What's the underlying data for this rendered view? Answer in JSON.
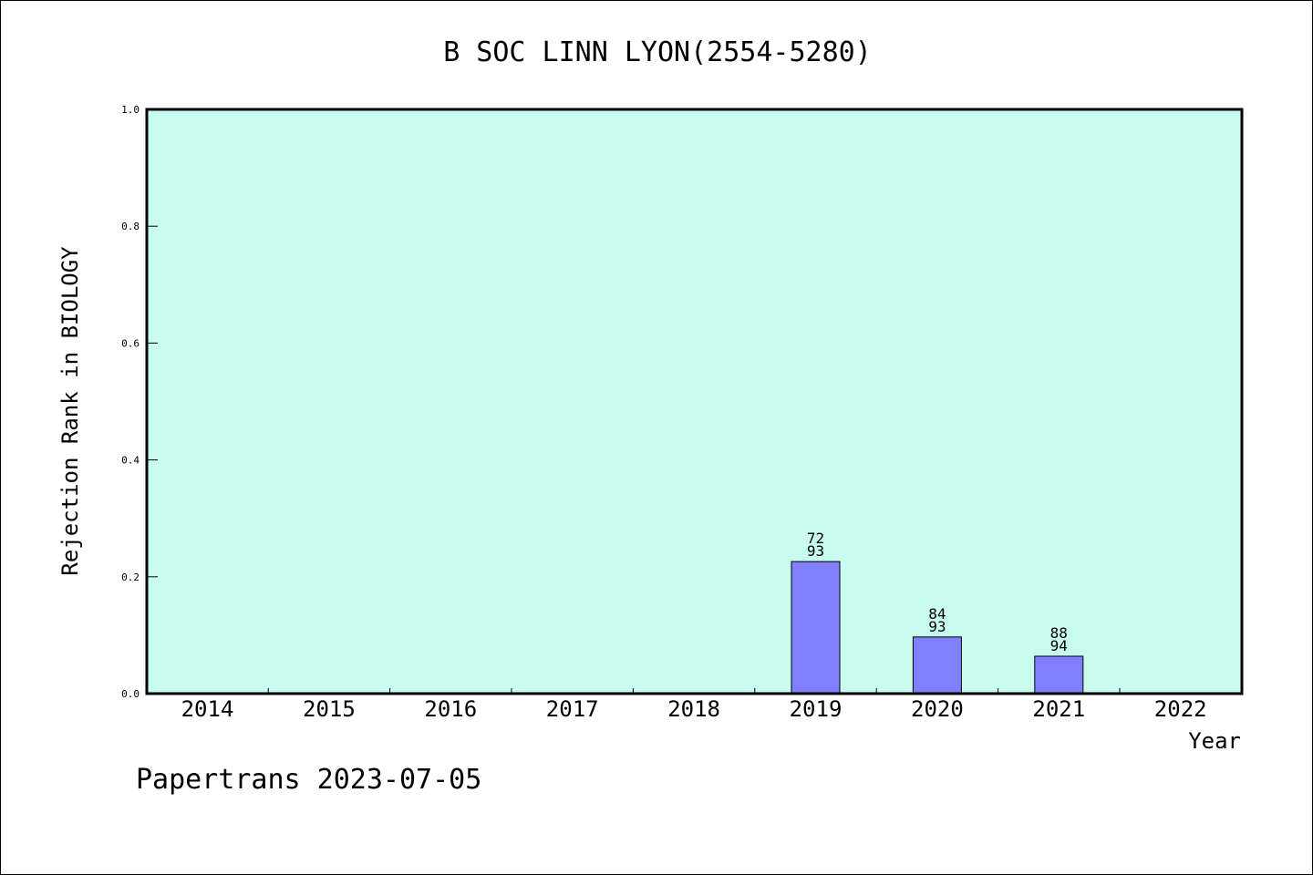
{
  "chart_data": {
    "type": "bar",
    "title": "B SOC LINN LYON(2554-5280)",
    "xlabel": "Year",
    "ylabel": "Rejection Rank in BIOLOGY",
    "ylim": [
      0,
      1.0
    ],
    "yticks": [
      "0.0",
      "0.2",
      "0.4",
      "0.6",
      "0.8",
      "1.0"
    ],
    "categories": [
      "2014",
      "2015",
      "2016",
      "2017",
      "2018",
      "2019",
      "2020",
      "2021",
      "2022"
    ],
    "values": [
      null,
      null,
      null,
      null,
      null,
      0.226,
      0.097,
      0.064,
      null
    ],
    "bar_labels": [
      null,
      null,
      null,
      null,
      null,
      {
        "numerator": "72",
        "denominator": "93"
      },
      {
        "numerator": "84",
        "denominator": "93"
      },
      {
        "numerator": "88",
        "denominator": "94"
      },
      null
    ],
    "grid": false,
    "colors": {
      "plot_background": "#c8fcee",
      "bar_fill": "#8080ff",
      "bar_stroke": "#000000"
    }
  },
  "footer": {
    "text": "Papertrans 2023-07-05"
  }
}
